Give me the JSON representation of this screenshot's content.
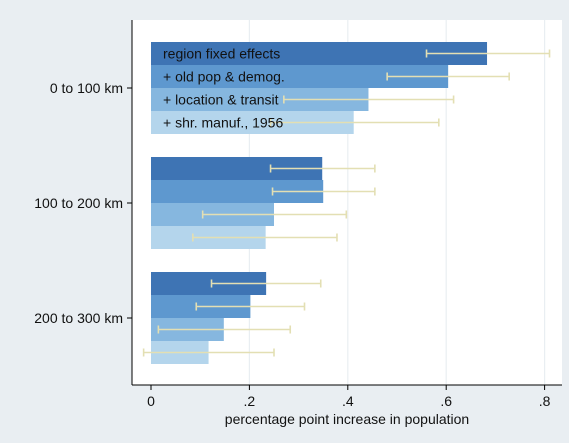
{
  "chart_data": {
    "type": "bar",
    "orientation": "horizontal",
    "xlabel": "percentage point increase in population",
    "ylabel": "",
    "xlim": [
      -0.04,
      0.8
    ],
    "x_ticks": [
      0,
      0.2,
      0.4,
      0.6,
      0.8
    ],
    "x_tick_labels": [
      "0",
      ".2",
      ".4",
      ".6",
      ".8"
    ],
    "grid": "vertical",
    "legend_placement": "inside top-left",
    "categories": [
      "0 to 100 km",
      "100 to 200 km",
      "200 to 300 km"
    ],
    "series": [
      {
        "name": "region fixed effects",
        "color": "#3e74b4",
        "values": [
          0.683,
          0.348,
          0.234
        ],
        "ci_low": [
          0.56,
          0.243,
          0.123
        ],
        "ci_high": [
          0.81,
          0.455,
          0.345
        ]
      },
      {
        "name": "+ old pop & demog.",
        "color": "#5e98cf",
        "values": [
          0.604,
          0.35,
          0.202
        ],
        "ci_low": [
          0.48,
          0.247,
          0.092
        ],
        "ci_high": [
          0.728,
          0.455,
          0.312
        ]
      },
      {
        "name": "+ location & transit",
        "color": "#86b7df",
        "values": [
          0.442,
          0.25,
          0.148
        ],
        "ci_low": [
          0.27,
          0.105,
          0.015
        ],
        "ci_high": [
          0.615,
          0.397,
          0.283
        ]
      },
      {
        "name": "+ shr. manuf., 1956",
        "color": "#b4d5ec",
        "values": [
          0.412,
          0.233,
          0.117
        ],
        "ci_low": [
          0.243,
          0.085,
          -0.015
        ],
        "ci_high": [
          0.585,
          0.378,
          0.25
        ]
      }
    ],
    "errorbar_color": "#e3dfb3"
  }
}
